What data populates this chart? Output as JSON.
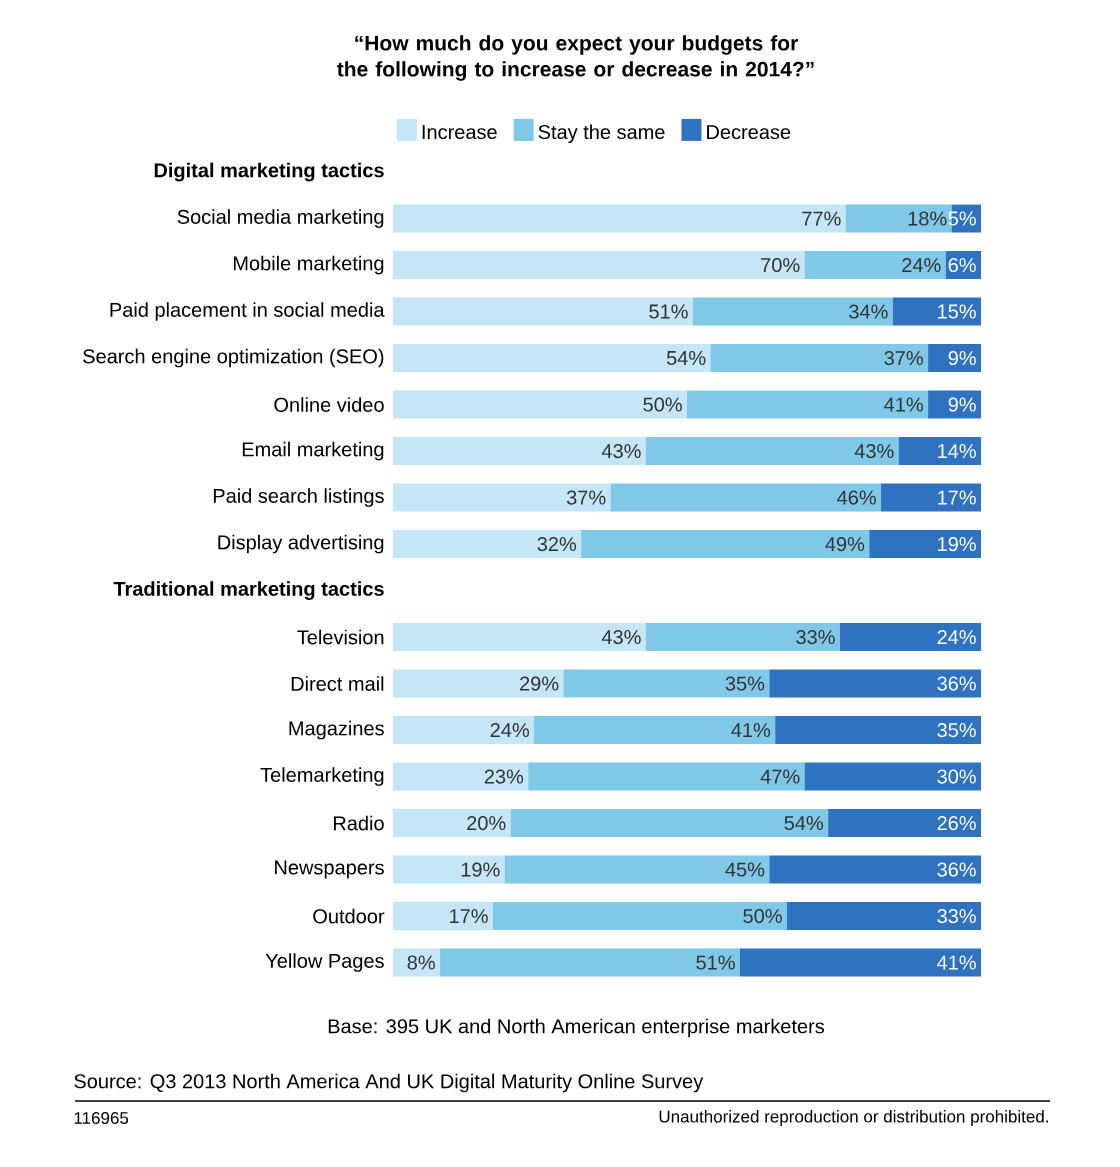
{
  "chart_data": {
    "type": "bar",
    "orientation": "horizontal",
    "stacked": true,
    "title": "“How much do you expect your budgets for the following to increase or decrease in 2014?”",
    "categories": [
      "Digital marketing tactics",
      "Social media marketing",
      "Mobile marketing",
      "Paid placement in social media",
      "Search engine optimization (SEO)",
      "Online video",
      "Email marketing",
      "Paid search listings",
      "Display advertising",
      "Traditional marketing tactics",
      "Television",
      "Direct mail",
      "Magazines",
      "Telemarketing",
      "Radio",
      "Newspapers",
      "Outdoor",
      "Yellow Pages"
    ],
    "series": [
      {
        "name": "Increase",
        "color": "#c5e6f6",
        "values": [
          null,
          77,
          70,
          51,
          54,
          50,
          43,
          37,
          32,
          null,
          43,
          29,
          24,
          23,
          20,
          19,
          17,
          8
        ],
        "value_labels": [
          null,
          "77%",
          "70%",
          "51%",
          "54%",
          "50%",
          "43%",
          "37%",
          "32%",
          null,
          "43%",
          "29%",
          "24%",
          "23%",
          "20%",
          "19%",
          "17%",
          "8%"
        ]
      },
      {
        "name": "Stay the same",
        "color": "#7fc8e8",
        "values": [
          null,
          18,
          24,
          34,
          37,
          41,
          43,
          46,
          49,
          null,
          33,
          35,
          41,
          47,
          54,
          45,
          50,
          51
        ],
        "value_labels": [
          null,
          "18%",
          "24%",
          "34%",
          "37%",
          "41%",
          "43%",
          "46%",
          "49%",
          null,
          "33%",
          "35%",
          "41%",
          "47%",
          "54%",
          "45%",
          "50%",
          "51%"
        ]
      },
      {
        "name": "Decrease",
        "color": "#2f72c0",
        "values": [
          null,
          5,
          6,
          15,
          9,
          9,
          14,
          17,
          19,
          null,
          24,
          36,
          35,
          30,
          26,
          36,
          33,
          41
        ],
        "value_labels": [
          null,
          "5%",
          "6%",
          "15%",
          "9%",
          "9%",
          "14%",
          "17%",
          "19%",
          null,
          "24%",
          "36%",
          "35%",
          "30%",
          "26%",
          "36%",
          "33%",
          "41%"
        ]
      }
    ],
    "xlim": [
      0,
      100
    ],
    "tick_labels": "y",
    "legend": "top",
    "annotations": [
      "Base: 395 UK and North American enterprise marketers",
      "Source: Q3 2013 North America And UK Digital Maturity Online Survey",
      "116965",
      "Unauthorized reproduction or distribution prohibited."
    ]
  }
}
